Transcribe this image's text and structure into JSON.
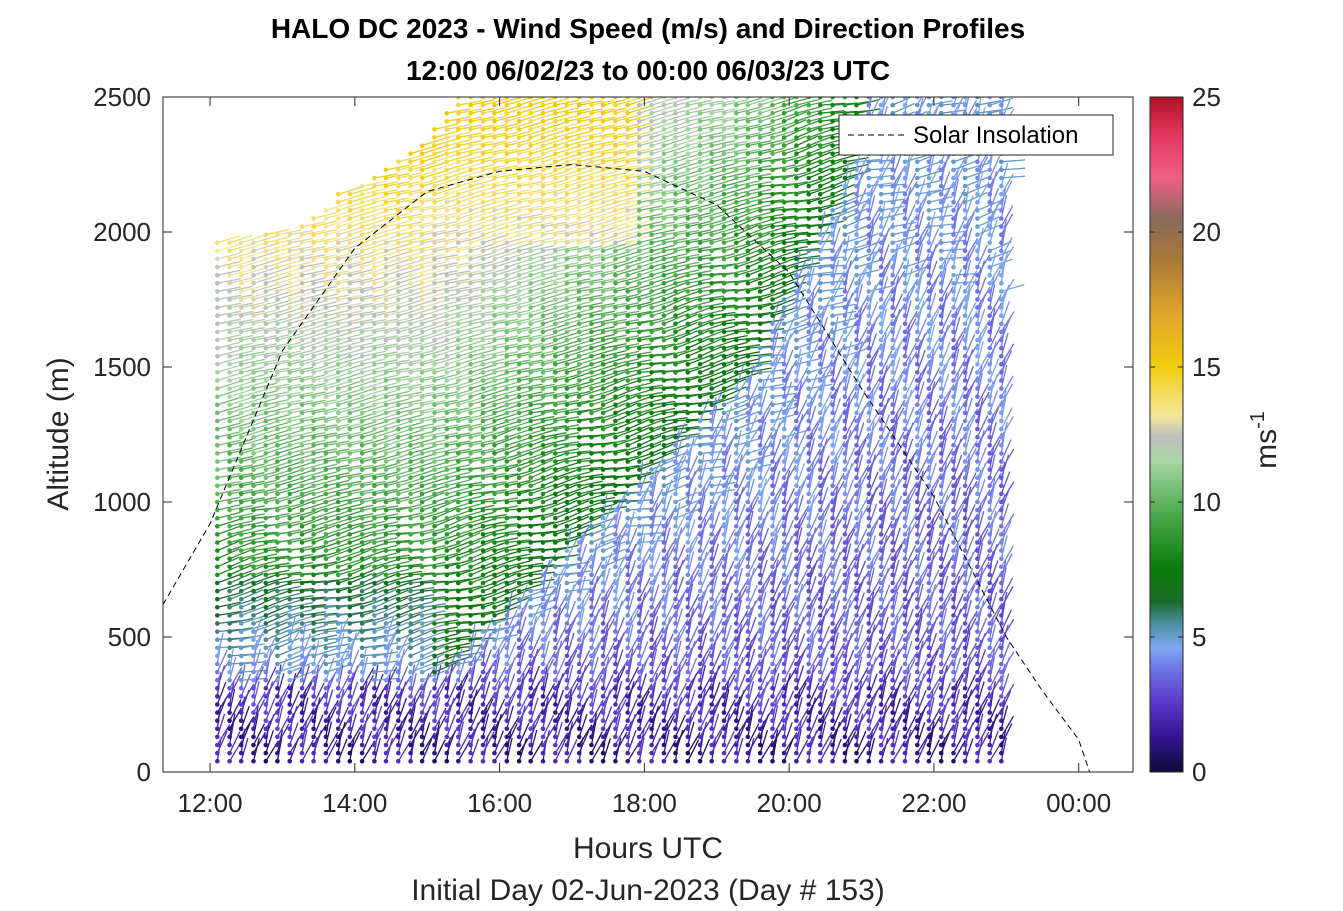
{
  "chart_data": {
    "type": "barb-profile",
    "title": "HALO DC 2023 - Wind Speed (m/s) and Direction Profiles",
    "subtitle": "12:00 06/02/23 to 00:00 06/03/23  UTC",
    "xlabel": "Hours UTC",
    "xlabel2": "Initial Day 02-Jun-2023 (Day # 153)",
    "ylabel": "Altitude (m)",
    "xlim": [
      11.35,
      24.75
    ],
    "ylim": [
      0,
      2500
    ],
    "x_ticks": [
      12,
      14,
      16,
      18,
      20,
      22,
      24
    ],
    "x_tick_labels": [
      "12:00",
      "14:00",
      "16:00",
      "18:00",
      "20:00",
      "22:00",
      "00:00"
    ],
    "y_ticks": [
      0,
      500,
      1000,
      1500,
      2000,
      2500
    ],
    "y_tick_labels": [
      "0",
      "500",
      "1000",
      "1500",
      "2000",
      "2500"
    ],
    "legend": {
      "entries": [
        "Solar Insolation"
      ],
      "location": "top-right"
    },
    "colorbar": {
      "label": "ms",
      "label_superscript": "-1",
      "range": [
        0,
        25
      ],
      "ticks": [
        0,
        5,
        10,
        15,
        20,
        25
      ],
      "tick_labels": [
        "0",
        "5",
        "10",
        "15",
        "20",
        "25"
      ],
      "stops": [
        {
          "v": 0,
          "color": "#0d0c38"
        },
        {
          "v": 1.2,
          "color": "#30138a"
        },
        {
          "v": 2.5,
          "color": "#5a35c8"
        },
        {
          "v": 3.8,
          "color": "#6f74e6"
        },
        {
          "v": 4.6,
          "color": "#7fa8f2"
        },
        {
          "v": 5.5,
          "color": "#4c8ea0"
        },
        {
          "v": 6.3,
          "color": "#1a6b2a"
        },
        {
          "v": 7.5,
          "color": "#0a7a0a"
        },
        {
          "v": 9.5,
          "color": "#4aa84a"
        },
        {
          "v": 11.5,
          "color": "#a8d6a4"
        },
        {
          "v": 12.4,
          "color": "#bdbdbd"
        },
        {
          "v": 13.2,
          "color": "#f3e79b"
        },
        {
          "v": 15,
          "color": "#f2cc10"
        },
        {
          "v": 17,
          "color": "#e0a52a"
        },
        {
          "v": 19,
          "color": "#a87838"
        },
        {
          "v": 20.5,
          "color": "#8a6b5d"
        },
        {
          "v": 22,
          "color": "#ef5f86"
        },
        {
          "v": 23.5,
          "color": "#e63a62"
        },
        {
          "v": 25,
          "color": "#b01028"
        }
      ]
    },
    "solar_insolation": {
      "style": "dashed black line",
      "x": [
        11.35,
        12.0,
        13.0,
        14.0,
        15.0,
        16.0,
        17.0,
        18.0,
        19.0,
        20.0,
        21.0,
        22.0,
        23.0,
        23.5,
        24.0,
        24.15,
        24.75
      ],
      "y": [
        620,
        920,
        1560,
        1940,
        2150,
        2225,
        2250,
        2225,
        2100,
        1850,
        1420,
        1020,
        500,
        300,
        120,
        0,
        0
      ]
    },
    "wind_profiles": {
      "time_step_hours": 0.1667,
      "altitude_step_m": 30,
      "times_hours": [
        12.1,
        12.27,
        12.43,
        12.6,
        12.77,
        12.93,
        13.1,
        13.27,
        13.43,
        13.6,
        13.77,
        13.93,
        14.1,
        14.27,
        14.43,
        14.6,
        14.77,
        14.93,
        15.1,
        15.27,
        15.43,
        15.6,
        15.77,
        15.93,
        16.1,
        16.27,
        16.43,
        16.6,
        16.77,
        16.93,
        17.1,
        17.27,
        17.43,
        17.6,
        17.77,
        17.93,
        18.1,
        18.27,
        18.43,
        18.6,
        18.77,
        18.93,
        19.1,
        19.27,
        19.43,
        19.6,
        19.77,
        19.93,
        20.1,
        20.27,
        20.43,
        20.6,
        20.77,
        20.93,
        21.1,
        21.27,
        21.43,
        21.6,
        21.77,
        21.93,
        22.1,
        22.27,
        22.43,
        22.6,
        22.77,
        22.93
      ],
      "top_altitude_m": [
        1960,
        1960,
        1960,
        1980,
        1990,
        1990,
        2010,
        2020,
        2050,
        2090,
        2140,
        2140,
        2180,
        2220,
        2250,
        2280,
        2310,
        2330,
        2400,
        2450,
        2500,
        2500,
        2500,
        2500,
        2500,
        2500,
        2500,
        2500,
        2500,
        2500,
        2500,
        2500,
        2500,
        2500,
        2500,
        2500,
        2500,
        2500,
        2500,
        2500,
        2500,
        2500,
        2500,
        2500,
        2500,
        2500,
        2500,
        2500,
        2500,
        2500,
        2500,
        2500,
        2500,
        2500,
        2500,
        2500,
        2500,
        2500,
        2500,
        2500,
        2500,
        2500,
        2500,
        2500,
        2500,
        2500
      ],
      "bottom_altitude_m": 40
    }
  }
}
